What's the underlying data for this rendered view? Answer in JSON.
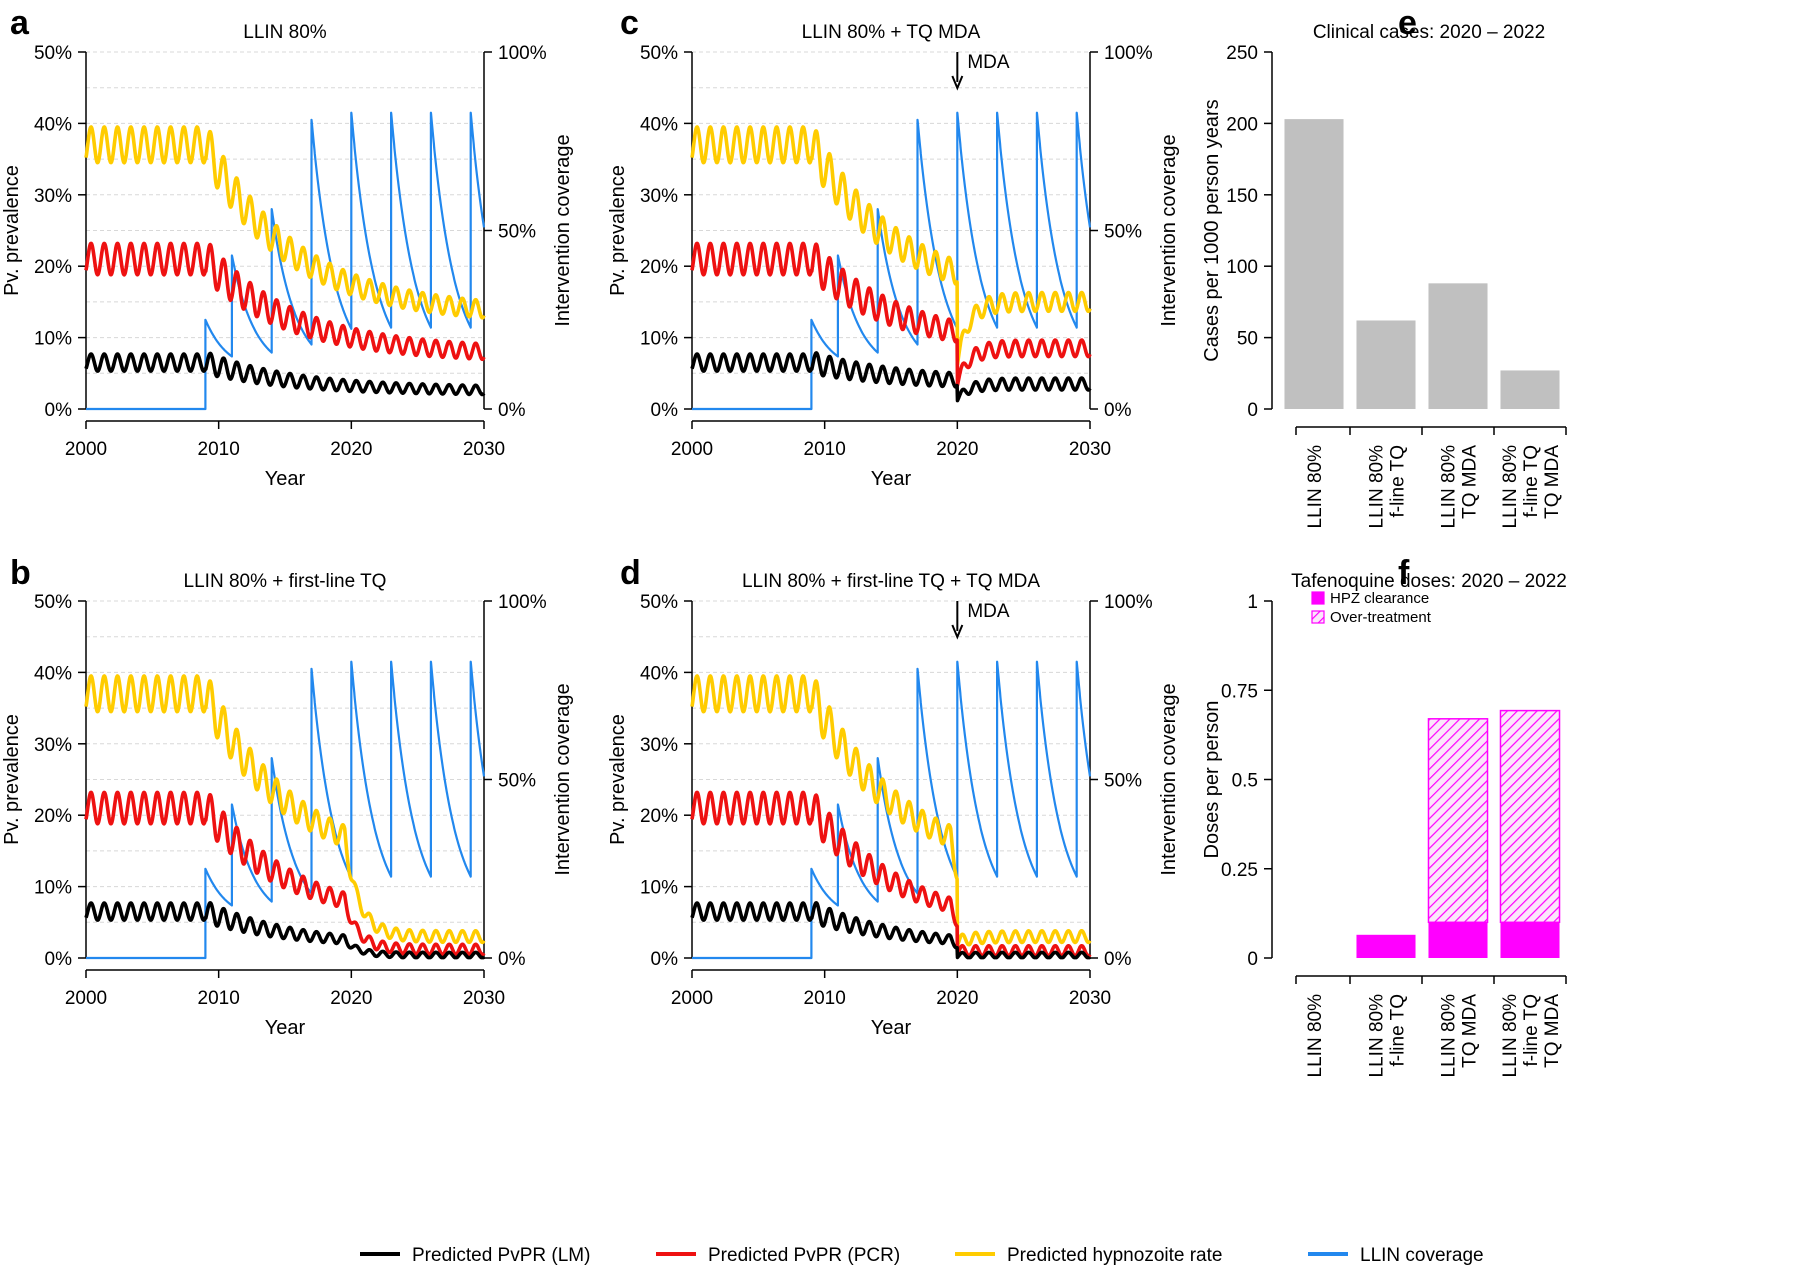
{
  "chart_data": [
    {
      "id": "a",
      "type": "line",
      "panel_label": "a",
      "title": "LLIN 80%",
      "xlabel": "Year",
      "ylabel": "Pv. prevalence",
      "ylabel_right": "Intervention coverage",
      "xlim": [
        2000,
        2030
      ],
      "ylim": [
        0,
        50
      ],
      "ylim_right": [
        0,
        100
      ],
      "x_ticks": [
        "2000",
        "2010",
        "2020",
        "2030"
      ],
      "y_ticks": [
        "0%",
        "10%",
        "20%",
        "30%",
        "40%",
        "50%"
      ],
      "y_ticks_right": [
        "0%",
        "50%",
        "100%"
      ],
      "tq_first_line": false,
      "mda": false,
      "series": [
        {
          "name": "Predicted PvPR (LM)",
          "color": "#000000",
          "pre_level": 6.5,
          "amplitude": 1.2,
          "period_years": 1,
          "end_level": 2.5
        },
        {
          "name": "Predicted PvPR (PCR)",
          "color": "#ee1111",
          "pre_level": 21,
          "amplitude": 2.2,
          "period_years": 1,
          "end_level": 7.5
        },
        {
          "name": "Predicted hypnozoite rate",
          "color": "#ffcc00",
          "pre_level": 37,
          "amplitude": 2.5,
          "period_years": 1,
          "end_level": 13
        },
        {
          "name": "LLIN coverage",
          "color": "#2288ee",
          "start_year": 2009,
          "distribution_years": [
            2009,
            2011,
            2014,
            2017,
            2020,
            2023,
            2026,
            2029
          ],
          "peak_coverage": [
            25,
            43,
            56,
            81,
            83,
            83,
            83,
            83
          ],
          "decay_floor": 20
        }
      ]
    },
    {
      "id": "b",
      "type": "line",
      "panel_label": "b",
      "title": "LLIN 80% + first-line TQ",
      "xlabel": "Year",
      "ylabel": "Pv. prevalence",
      "ylabel_right": "Intervention coverage",
      "xlim": [
        2000,
        2030
      ],
      "ylim": [
        0,
        50
      ],
      "ylim_right": [
        0,
        100
      ],
      "x_ticks": [
        "2000",
        "2010",
        "2020",
        "2030"
      ],
      "y_ticks": [
        "0%",
        "10%",
        "20%",
        "30%",
        "40%",
        "50%"
      ],
      "y_ticks_right": [
        "0%",
        "50%",
        "100%"
      ],
      "tq_first_line": true,
      "mda": false,
      "series": [
        {
          "name": "Predicted PvPR (LM)",
          "color": "#000000",
          "pre_level": 6.5,
          "amplitude": 1.2,
          "period_years": 1,
          "end_level": 0.4
        },
        {
          "name": "Predicted PvPR (PCR)",
          "color": "#ee1111",
          "pre_level": 21,
          "amplitude": 2.2,
          "period_years": 1,
          "end_level": 1.2
        },
        {
          "name": "Predicted hypnozoite rate",
          "color": "#ffcc00",
          "pre_level": 37,
          "amplitude": 2.5,
          "period_years": 1,
          "end_level": 3
        },
        {
          "name": "LLIN coverage",
          "color": "#2288ee",
          "start_year": 2009,
          "distribution_years": [
            2009,
            2011,
            2014,
            2017,
            2020,
            2023,
            2026,
            2029
          ],
          "peak_coverage": [
            25,
            43,
            56,
            81,
            83,
            83,
            83,
            83
          ],
          "decay_floor": 20
        }
      ]
    },
    {
      "id": "c",
      "type": "line",
      "panel_label": "c",
      "title": "LLIN 80% + TQ MDA",
      "xlabel": "Year",
      "ylabel": "Pv. prevalence",
      "ylabel_right": "Intervention coverage",
      "xlim": [
        2000,
        2030
      ],
      "ylim": [
        0,
        50
      ],
      "ylim_right": [
        0,
        100
      ],
      "x_ticks": [
        "2000",
        "2010",
        "2020",
        "2030"
      ],
      "y_ticks": [
        "0%",
        "10%",
        "20%",
        "30%",
        "40%",
        "50%"
      ],
      "y_ticks_right": [
        "0%",
        "50%",
        "100%"
      ],
      "tq_first_line": false,
      "mda": true,
      "mda_year": 2020,
      "mda_label": "MDA",
      "series": [
        {
          "name": "Predicted PvPR (LM)",
          "color": "#000000",
          "pre_level": 6.5,
          "amplitude": 1.2,
          "period_years": 1,
          "end_level": 3.5
        },
        {
          "name": "Predicted PvPR (PCR)",
          "color": "#ee1111",
          "pre_level": 21,
          "amplitude": 2.2,
          "period_years": 1,
          "end_level": 8.5
        },
        {
          "name": "Predicted hypnozoite rate",
          "color": "#ffcc00",
          "pre_level": 37,
          "amplitude": 2.5,
          "period_years": 1,
          "end_level": 15
        },
        {
          "name": "LLIN coverage",
          "color": "#2288ee",
          "start_year": 2009,
          "distribution_years": [
            2009,
            2011,
            2014,
            2017,
            2020,
            2023,
            2026,
            2029
          ],
          "peak_coverage": [
            25,
            43,
            56,
            81,
            83,
            83,
            83,
            83
          ],
          "decay_floor": 20
        }
      ]
    },
    {
      "id": "d",
      "type": "line",
      "panel_label": "d",
      "title": "LLIN 80% + first-line TQ + TQ MDA",
      "xlabel": "Year",
      "ylabel": "Pv. prevalence",
      "ylabel_right": "Intervention coverage",
      "xlim": [
        2000,
        2030
      ],
      "ylim": [
        0,
        50
      ],
      "ylim_right": [
        0,
        100
      ],
      "x_ticks": [
        "2000",
        "2010",
        "2020",
        "2030"
      ],
      "y_ticks": [
        "0%",
        "10%",
        "20%",
        "30%",
        "40%",
        "50%"
      ],
      "y_ticks_right": [
        "0%",
        "50%",
        "100%"
      ],
      "tq_first_line": true,
      "mda": true,
      "mda_year": 2020,
      "mda_label": "MDA",
      "series": [
        {
          "name": "Predicted PvPR (LM)",
          "color": "#000000",
          "pre_level": 6.5,
          "amplitude": 1.2,
          "period_years": 1,
          "end_level": 0.4
        },
        {
          "name": "Predicted PvPR (PCR)",
          "color": "#ee1111",
          "pre_level": 21,
          "amplitude": 2.2,
          "period_years": 1,
          "end_level": 1.0
        },
        {
          "name": "Predicted hypnozoite rate",
          "color": "#ffcc00",
          "pre_level": 37,
          "amplitude": 2.5,
          "period_years": 1,
          "end_level": 3
        },
        {
          "name": "LLIN coverage",
          "color": "#2288ee",
          "start_year": 2009,
          "distribution_years": [
            2009,
            2011,
            2014,
            2017,
            2020,
            2023,
            2026,
            2029
          ],
          "peak_coverage": [
            25,
            43,
            56,
            81,
            83,
            83,
            83,
            83
          ],
          "decay_floor": 20
        }
      ]
    },
    {
      "id": "e",
      "type": "bar",
      "panel_label": "e",
      "title": "Clinical cases: 2020 – 2022",
      "ylabel": "Cases per 1000 person years",
      "ylim": [
        0,
        250
      ],
      "y_ticks": [
        "0",
        "50",
        "100",
        "150",
        "200",
        "250"
      ],
      "categories": [
        [
          "LLIN 80%"
        ],
        [
          "LLIN 80%",
          "f-line TQ"
        ],
        [
          "LLIN 80%",
          "TQ MDA"
        ],
        [
          "LLIN 80%",
          "f-line TQ",
          "TQ MDA"
        ]
      ],
      "values": [
        203,
        62,
        88,
        27
      ],
      "bar_color": "#c0c0c0"
    },
    {
      "id": "f",
      "type": "bar",
      "stacked": true,
      "panel_label": "f",
      "title": "Tafenoquine doses: 2020 – 2022",
      "ylabel": "Doses per person",
      "ylim": [
        0,
        1
      ],
      "y_ticks": [
        "0",
        "0.25",
        "0.5",
        "0.75",
        "1"
      ],
      "categories": [
        [
          "LLIN 80%"
        ],
        [
          "LLIN 80%",
          "f-line TQ"
        ],
        [
          "LLIN 80%",
          "TQ MDA"
        ],
        [
          "LLIN 80%",
          "f-line TQ",
          "TQ MDA"
        ]
      ],
      "series": [
        {
          "name": "HPZ clearance",
          "color": "#ff00ff",
          "pattern": "solid",
          "values": [
            0,
            0.065,
            0.1,
            0.1
          ]
        },
        {
          "name": "Over-treatment",
          "color": "#ff00ff",
          "pattern": "hatched",
          "values": [
            0,
            0,
            0.57,
            0.593
          ]
        }
      ]
    }
  ],
  "legend": [
    {
      "label": "Predicted PvPR (LM)",
      "color": "#000000"
    },
    {
      "label": "Predicted PvPR (PCR)",
      "color": "#ee1111"
    },
    {
      "label": "Predicted hypnozoite rate",
      "color": "#ffcc00"
    },
    {
      "label": "LLIN coverage",
      "color": "#2288ee"
    }
  ]
}
